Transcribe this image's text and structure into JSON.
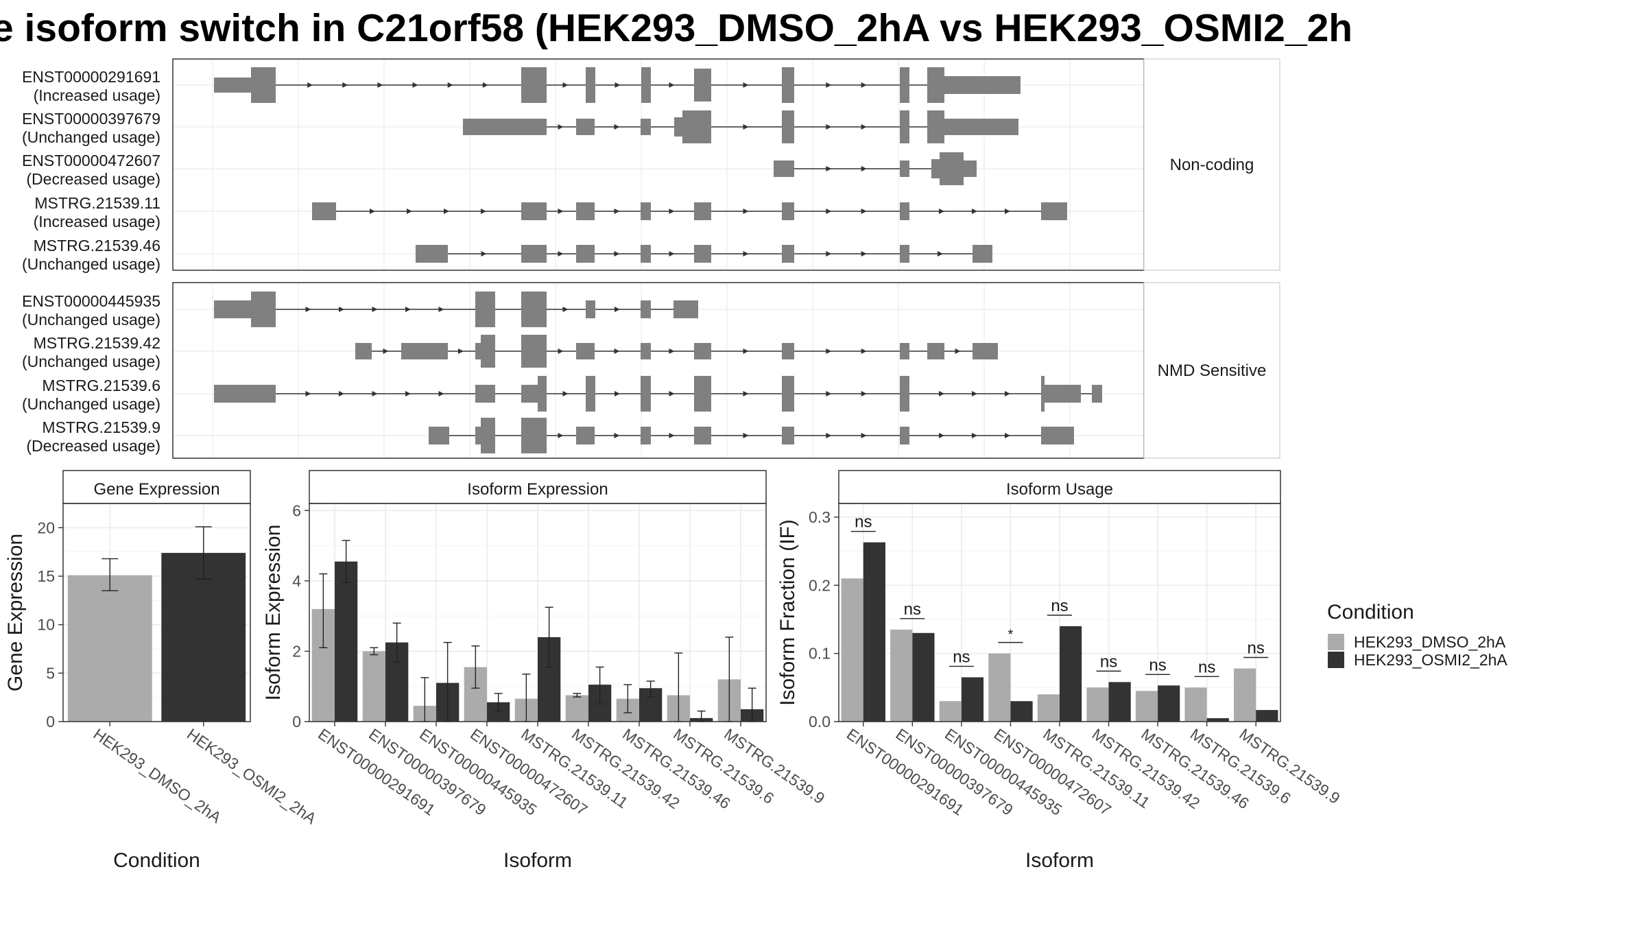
{
  "title": "e isoform switch in C21orf58 (HEK293_DMSO_2hA vs HEK293_OSMI2_2h",
  "colors": {
    "dmso": "#ababab",
    "osmi": "#333333",
    "exon": "#808080",
    "intron": "#333333",
    "grid": "#ebebeb",
    "strip_bg": "#ffffff",
    "panel_border": "#333333"
  },
  "chart_data": [
    {
      "type": "table",
      "name": "isoform-structures",
      "panels": [
        {
          "label": "Non-coding",
          "transcripts": [
            {
              "id": "ENST00000291691",
              "usage": "(Increased usage)"
            },
            {
              "id": "ENST00000397679",
              "usage": "(Unchanged usage)"
            },
            {
              "id": "ENST00000472607",
              "usage": "(Decreased usage)"
            },
            {
              "id": "MSTRG.21539.11",
              "usage": "(Increased usage)"
            },
            {
              "id": "MSTRG.21539.46",
              "usage": "(Unchanged usage)"
            }
          ]
        },
        {
          "label": "NMD Sensitive",
          "transcripts": [
            {
              "id": "ENST00000445935",
              "usage": "(Unchanged usage)"
            },
            {
              "id": "MSTRG.21539.42",
              "usage": "(Unchanged usage)"
            },
            {
              "id": "MSTRG.21539.6",
              "usage": "(Unchanged usage)"
            },
            {
              "id": "MSTRG.21539.9",
              "usage": "(Decreased usage)"
            }
          ]
        }
      ]
    },
    {
      "type": "bar",
      "strip": "Gene Expression",
      "xlabel": "Condition",
      "ylabel": "Gene Expression",
      "ylim": [
        0,
        22.5
      ],
      "yticks": [
        0,
        5,
        10,
        15,
        20
      ],
      "categories": [
        "HEK293_DMSO_2hA",
        "HEK293_OSMI2_2hA"
      ],
      "values": [
        15.1,
        17.4
      ],
      "err_low": [
        13.5,
        14.7
      ],
      "err_high": [
        16.8,
        20.1
      ]
    },
    {
      "type": "bar",
      "strip": "Isoform Expression",
      "xlabel": "Isoform",
      "ylabel": "Isoform Expression",
      "ylim": [
        0,
        6.2
      ],
      "yticks": [
        0,
        2,
        4,
        6
      ],
      "categories": [
        "ENST00000291691",
        "ENST00000397679",
        "ENST00000445935",
        "ENST00000472607",
        "MSTRG.21539.11",
        "MSTRG.21539.42",
        "MSTRG.21539.46",
        "MSTRG.21539.6",
        "MSTRG.21539.9"
      ],
      "series": [
        {
          "name": "HEK293_DMSO_2hA",
          "values": [
            3.2,
            2.0,
            0.45,
            1.55,
            0.65,
            0.75,
            0.65,
            0.75,
            1.2
          ],
          "err_low": [
            2.1,
            1.9,
            0.0,
            0.95,
            0.0,
            0.7,
            0.25,
            0.0,
            0.0
          ],
          "err_high": [
            4.2,
            2.1,
            1.25,
            2.15,
            1.35,
            0.8,
            1.05,
            1.95,
            2.4
          ]
        },
        {
          "name": "HEK293_OSMI2_2hA",
          "values": [
            4.55,
            2.25,
            1.1,
            0.55,
            2.4,
            1.05,
            0.95,
            0.1,
            0.35
          ],
          "err_low": [
            3.95,
            1.7,
            0.0,
            0.3,
            1.55,
            0.5,
            0.7,
            0.0,
            0.0
          ],
          "err_high": [
            5.15,
            2.8,
            2.25,
            0.8,
            3.25,
            1.55,
            1.15,
            0.3,
            0.95
          ]
        }
      ]
    },
    {
      "type": "bar",
      "strip": "Isoform Usage",
      "xlabel": "Isoform",
      "ylabel": "Isoform Fraction (IF)",
      "ylim": [
        0,
        0.32
      ],
      "yticks": [
        0.0,
        0.1,
        0.2,
        0.3
      ],
      "ytick_labels": [
        "0.0",
        "0.1",
        "0.2",
        "0.3"
      ],
      "categories": [
        "ENST00000291691",
        "ENST00000397679",
        "ENST00000445935",
        "ENST00000472607",
        "MSTRG.21539.11",
        "MSTRG.21539.42",
        "MSTRG.21539.46",
        "MSTRG.21539.6",
        "MSTRG.21539.9"
      ],
      "series": [
        {
          "name": "HEK293_DMSO_2hA",
          "values": [
            0.21,
            0.135,
            0.03,
            0.1,
            0.04,
            0.05,
            0.045,
            0.05,
            0.078
          ]
        },
        {
          "name": "HEK293_OSMI2_2hA",
          "values": [
            0.263,
            0.13,
            0.065,
            0.03,
            0.14,
            0.058,
            0.053,
            0.005,
            0.017
          ]
        }
      ],
      "significance": [
        "ns",
        "ns",
        "ns",
        "*",
        "ns",
        "ns",
        "ns",
        "ns",
        "ns"
      ]
    }
  ],
  "legend": {
    "title": "Condition",
    "entries": [
      "HEK293_DMSO_2hA",
      "HEK293_OSMI2_2hA"
    ]
  }
}
